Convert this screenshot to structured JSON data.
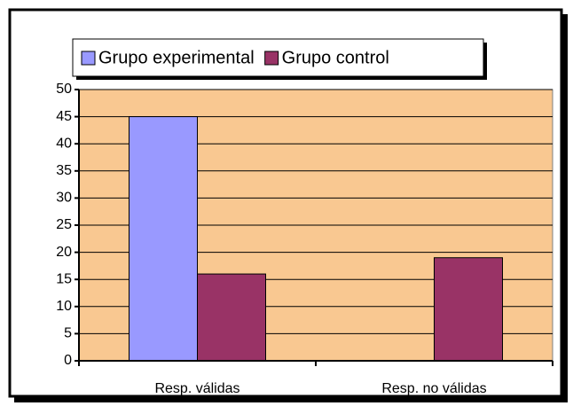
{
  "chart_data": {
    "type": "bar",
    "categories": [
      "Resp. válidas",
      "Resp. no válidas"
    ],
    "series": [
      {
        "name": "Grupo experimental",
        "color": "#9999ff",
        "values": [
          45,
          0
        ]
      },
      {
        "name": "Grupo control",
        "color": "#993366",
        "values": [
          16,
          19
        ]
      }
    ],
    "ylim": [
      0,
      50
    ],
    "yticks": [
      0,
      5,
      10,
      15,
      20,
      25,
      30,
      35,
      40,
      45,
      50
    ],
    "grid": true,
    "plot_background": "#f9c891",
    "legend": "top"
  }
}
